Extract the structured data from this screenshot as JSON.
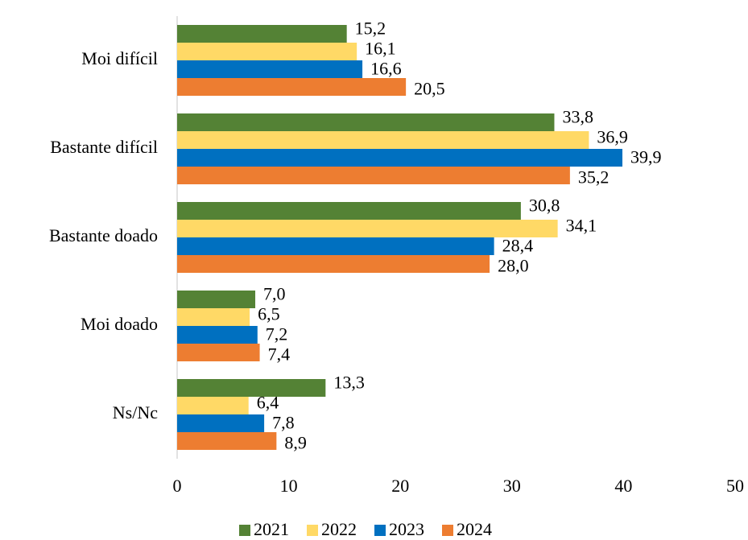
{
  "chart_data": {
    "type": "hbar",
    "categories": [
      "Moi difícil",
      "Bastante difícil",
      "Bastante doado",
      "Moi doado",
      "Ns/Nc"
    ],
    "series": [
      {
        "name": "2021",
        "color": "#548235",
        "values": [
          15.2,
          33.8,
          30.8,
          7.0,
          13.3
        ],
        "value_labels": [
          "15,2",
          "33,8",
          "30,8",
          "7,0",
          "13,3"
        ]
      },
      {
        "name": "2022",
        "color": "#ffd966",
        "values": [
          16.1,
          36.9,
          34.1,
          6.5,
          6.4
        ],
        "value_labels": [
          "16,1",
          "36,9",
          "34,1",
          "6,5",
          "6,4"
        ]
      },
      {
        "name": "2023",
        "color": "#0070c0",
        "values": [
          16.6,
          39.9,
          28.4,
          7.2,
          7.8
        ],
        "value_labels": [
          "16,6",
          "39,9",
          "28,4",
          "7,2",
          "7,8"
        ]
      },
      {
        "name": "2024",
        "color": "#ed7d31",
        "values": [
          20.5,
          35.2,
          28.0,
          7.4,
          8.9
        ],
        "value_labels": [
          "20,5",
          "35,2",
          "28,0",
          "7,4",
          "8,9"
        ]
      }
    ],
    "xlim": [
      0,
      50
    ],
    "xticks": [
      0,
      10,
      20,
      30,
      40,
      50
    ],
    "legend": "bottom"
  }
}
